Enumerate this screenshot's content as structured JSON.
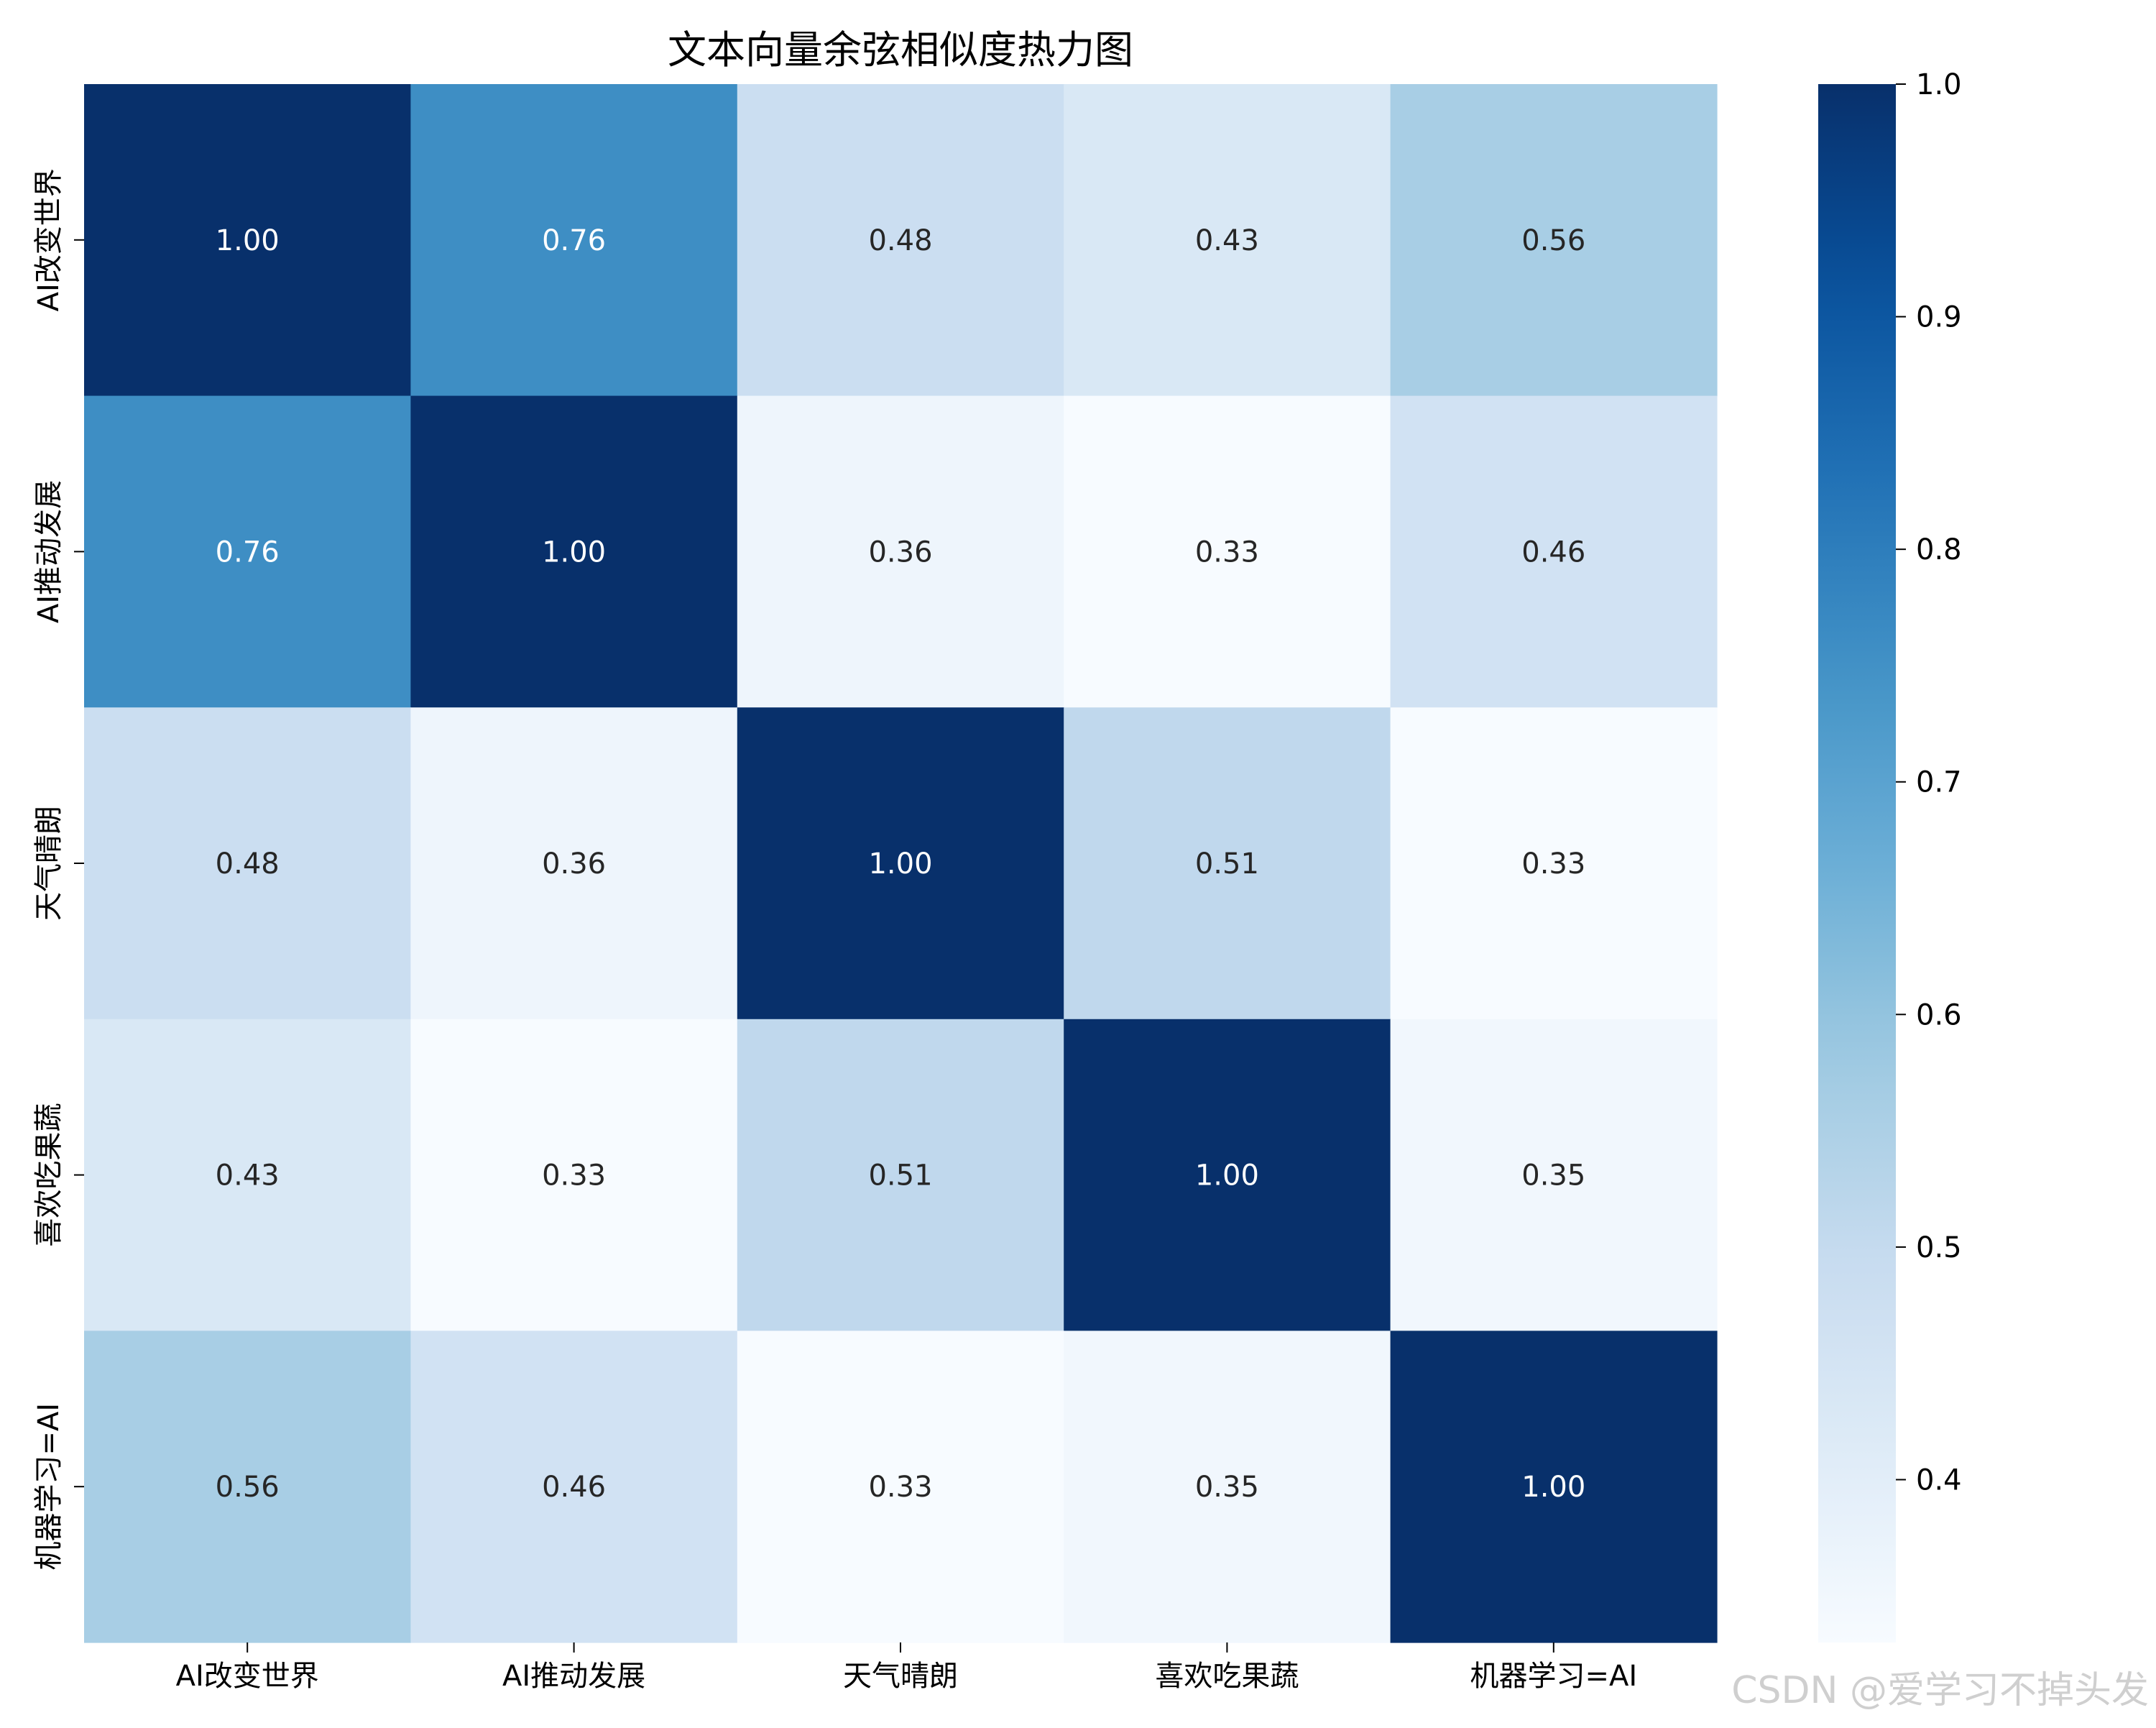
{
  "chart_data": {
    "type": "heatmap",
    "title": "文本向量余弦相似度热力图",
    "x_labels": [
      "AI改变世界",
      "AI推动发展",
      "天气晴朗",
      "喜欢吃果蔬",
      "机器学习=AI"
    ],
    "y_labels": [
      "AI改变世界",
      "AI推动发展",
      "天气晴朗",
      "喜欢吃果蔬",
      "机器学习=AI"
    ],
    "values": [
      [
        1.0,
        0.76,
        0.48,
        0.43,
        0.56
      ],
      [
        0.76,
        1.0,
        0.36,
        0.33,
        0.46
      ],
      [
        0.48,
        0.36,
        1.0,
        0.51,
        0.33
      ],
      [
        0.43,
        0.33,
        0.51,
        1.0,
        0.35
      ],
      [
        0.56,
        0.46,
        0.33,
        0.35,
        1.0
      ]
    ],
    "value_labels": [
      [
        "1.00",
        "0.76",
        "0.48",
        "0.43",
        "0.56"
      ],
      [
        "0.76",
        "1.00",
        "0.36",
        "0.33",
        "0.46"
      ],
      [
        "0.48",
        "0.36",
        "1.00",
        "0.51",
        "0.33"
      ],
      [
        "0.43",
        "0.33",
        "0.51",
        "1.00",
        "0.35"
      ],
      [
        "0.56",
        "0.46",
        "0.33",
        "0.35",
        "1.00"
      ]
    ],
    "colormap": "Blues",
    "vmin": 0.33,
    "vmax": 1.0,
    "colorbar_ticks": [
      0.4,
      0.5,
      0.6,
      0.7,
      0.8,
      0.9,
      1.0
    ],
    "colorbar_tick_labels": [
      "0.4",
      "0.5",
      "0.6",
      "0.7",
      "0.8",
      "0.9",
      "1.0"
    ],
    "xlabel": "",
    "ylabel": ""
  },
  "watermark": "CSDN @爱学习不掉头发"
}
